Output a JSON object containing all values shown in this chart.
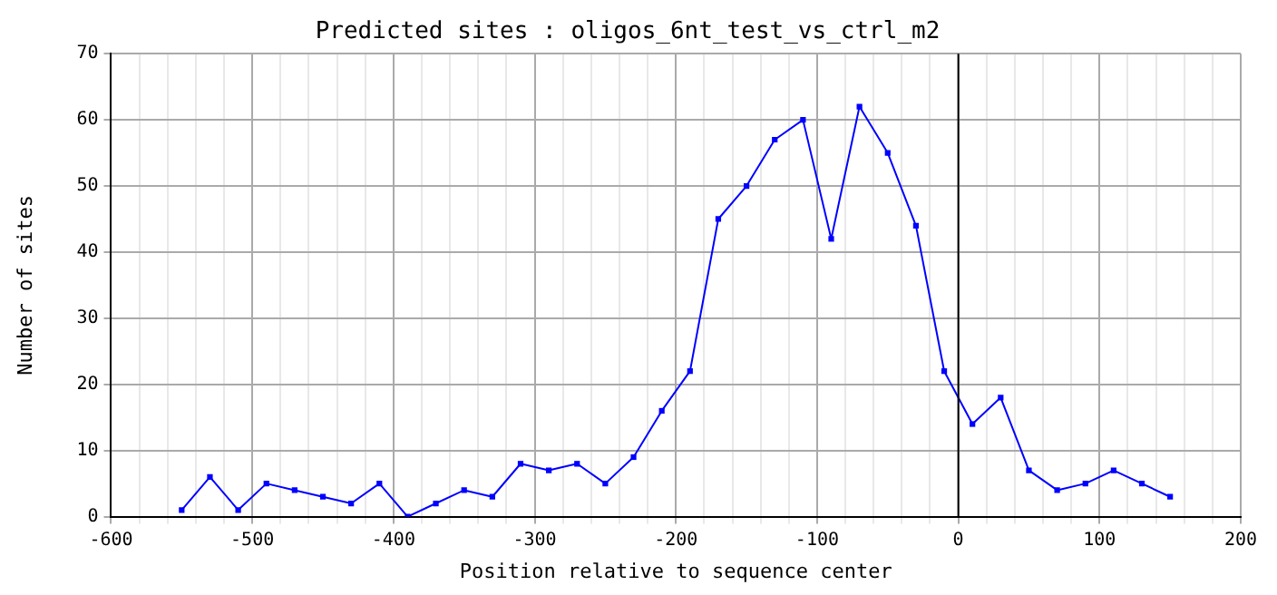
{
  "chart_data": {
    "type": "line",
    "title": "Predicted sites : oligos_6nt_test_vs_ctrl_m2",
    "xlabel": "Position relative to sequence center",
    "ylabel": "Number of sites",
    "x": [
      -550,
      -530,
      -510,
      -490,
      -470,
      -450,
      -430,
      -410,
      -390,
      -370,
      -350,
      -330,
      -310,
      -290,
      -270,
      -250,
      -230,
      -210,
      -190,
      -170,
      -150,
      -130,
      -110,
      -90,
      -70,
      -50,
      -30,
      -10,
      10,
      30,
      50,
      70,
      90,
      110,
      130,
      150
    ],
    "series": [
      {
        "color": "#0000ff",
        "values": [
          1,
          6,
          1,
          5,
          4,
          3,
          2,
          5,
          0,
          2,
          4,
          3,
          8,
          7,
          8,
          5,
          9,
          16,
          22,
          45,
          50,
          57,
          60,
          42,
          62,
          55,
          44,
          22,
          14,
          18,
          7,
          4,
          5,
          7,
          5,
          3
        ]
      }
    ],
    "xlim": [
      -600,
      200
    ],
    "xticks": [
      -600,
      {
        "value": -580,
        "label": null
      },
      {
        "value": -560,
        "label": null
      },
      {
        "value": -540,
        "label": null
      },
      {
        "value": -520,
        "label": null
      },
      -500,
      {
        "value": -480,
        "label": null
      },
      {
        "value": -460,
        "label": null
      },
      {
        "value": -440,
        "label": null
      },
      {
        "value": -420,
        "label": null
      },
      -400,
      {
        "value": -380,
        "label": null
      },
      {
        "value": -360,
        "label": null
      },
      {
        "value": -340,
        "label": null
      },
      {
        "value": -320,
        "label": null
      },
      -300,
      {
        "value": -280,
        "label": null
      },
      {
        "value": -260,
        "label": null
      },
      {
        "value": -240,
        "label": null
      },
      {
        "value": -220,
        "label": null
      },
      -200,
      {
        "value": -180,
        "label": null
      },
      {
        "value": -160,
        "label": null
      },
      {
        "value": -140,
        "label": null
      },
      {
        "value": -120,
        "label": null
      },
      -100,
      {
        "value": -80,
        "label": null
      },
      {
        "value": -60,
        "label": null
      },
      {
        "value": -40,
        "label": null
      },
      {
        "value": -20,
        "label": null
      },
      0,
      {
        "value": 20,
        "label": null
      },
      {
        "value": 40,
        "label": null
      },
      {
        "value": 60,
        "label": null
      },
      {
        "value": 80,
        "label": null
      },
      100,
      {
        "value": 120,
        "label": null
      },
      {
        "value": 140,
        "label": null
      },
      {
        "value": 160,
        "label": null
      },
      {
        "value": 180,
        "label": null
      },
      200
    ],
    "ylim": [
      0,
      70
    ],
    "yticks": [
      0,
      10,
      20,
      30,
      40,
      50,
      60,
      70
    ],
    "ref_lines": [
      {
        "axis": "x",
        "value": 0,
        "color": "#000000"
      }
    ],
    "grid": true,
    "legend": false,
    "marker": "square",
    "line_style": "solid"
  }
}
